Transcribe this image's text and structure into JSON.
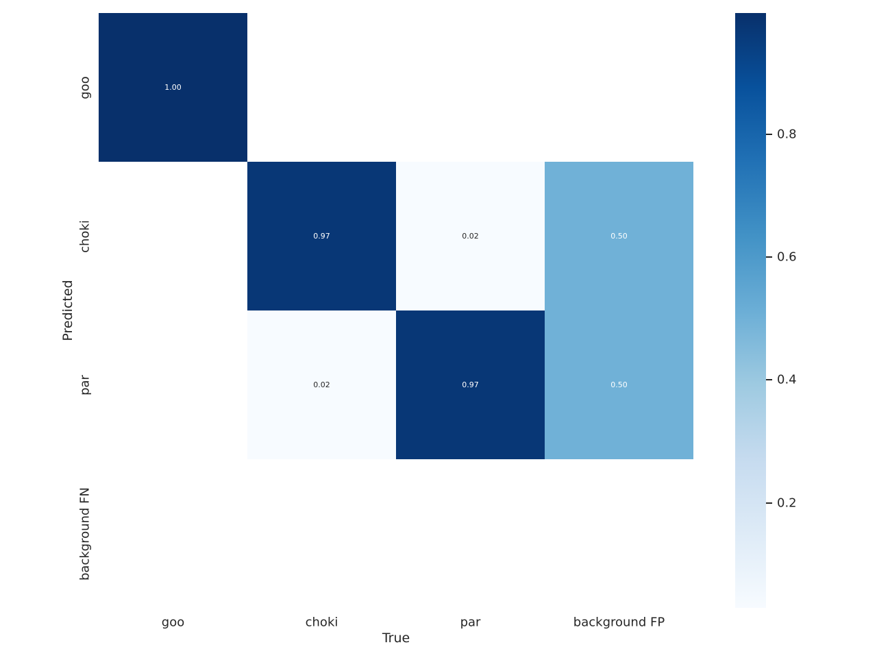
{
  "figure": {
    "background_color": "#ffffff",
    "text_color": "#262626"
  },
  "chart_data": {
    "type": "heatmap",
    "title": "",
    "xlabel": "True",
    "ylabel": "Predicted",
    "x_categories": [
      "goo",
      "choki",
      "par",
      "background FP"
    ],
    "y_categories": [
      "goo",
      "choki",
      "par",
      "background FN"
    ],
    "matrix": [
      [
        1.0,
        null,
        null,
        null
      ],
      [
        null,
        0.97,
        0.02,
        0.5
      ],
      [
        null,
        0.02,
        0.97,
        0.5
      ],
      [
        null,
        null,
        null,
        null
      ]
    ],
    "cell_labels": [
      [
        "1.00",
        "",
        "",
        ""
      ],
      [
        "",
        "0.97",
        "0.02",
        "0.50"
      ],
      [
        "",
        "0.02",
        "0.97",
        "0.50"
      ],
      [
        "",
        "",
        "",
        ""
      ]
    ],
    "scale": {
      "vmin": 0.029,
      "vmax": 0.997
    },
    "colormap": {
      "name": "Blues",
      "stops": [
        {
          "pos": 0.0,
          "color": "#f7fbff"
        },
        {
          "pos": 0.125,
          "color": "#deebf7"
        },
        {
          "pos": 0.25,
          "color": "#c6dbef"
        },
        {
          "pos": 0.375,
          "color": "#9ecae1"
        },
        {
          "pos": 0.5,
          "color": "#6baed6"
        },
        {
          "pos": 0.625,
          "color": "#4292c6"
        },
        {
          "pos": 0.75,
          "color": "#2171b5"
        },
        {
          "pos": 0.875,
          "color": "#08519c"
        },
        {
          "pos": 1.0,
          "color": "#08306b"
        }
      ]
    },
    "colorbar": {
      "tick_labels": [
        "0.8",
        "0.6",
        "0.4",
        "0.2"
      ],
      "tick_values": [
        0.8,
        0.6,
        0.4,
        0.2
      ]
    },
    "annotation_colors": {
      "on_dark": "#ffffff",
      "on_light": "#262626"
    },
    "legend_position": "right",
    "grid": false
  }
}
